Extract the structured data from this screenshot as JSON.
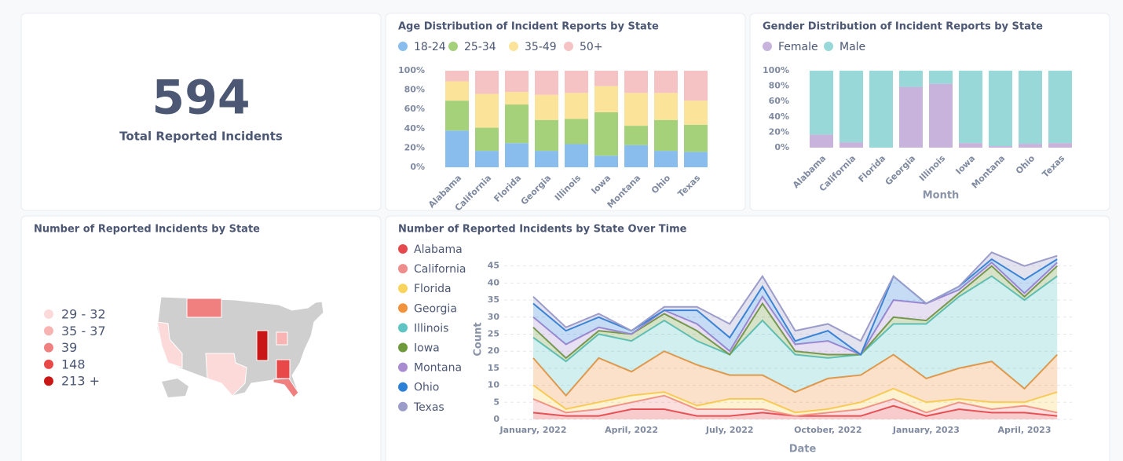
{
  "kpi": {
    "value": 594,
    "label": "Total Reported Incidents"
  },
  "chart_data": [
    {
      "type": "bar",
      "stacked": true,
      "title": "Age Distribution of Incident Reports by State",
      "categories": [
        "Alabama",
        "California",
        "Florida",
        "Georgia",
        "Illinois",
        "Iowa",
        "Montana",
        "Ohio",
        "Texas"
      ],
      "series": [
        {
          "name": "18-24",
          "color": "#88bdee",
          "values": [
            38,
            17,
            25,
            17,
            24,
            12,
            23,
            17,
            16
          ]
        },
        {
          "name": "25-34",
          "color": "#a5d17b",
          "values": [
            31,
            24,
            40,
            32,
            26,
            45,
            20,
            32,
            28
          ]
        },
        {
          "name": "35-49",
          "color": "#fbe39a",
          "values": [
            20,
            35,
            13,
            26,
            27,
            27,
            34,
            28,
            25
          ]
        },
        {
          "name": "50+",
          "color": "#f6c3c4",
          "values": [
            11,
            24,
            22,
            25,
            23,
            16,
            23,
            23,
            31
          ]
        }
      ],
      "ylim": [
        0,
        100
      ],
      "yticks": [
        {
          "value": 0,
          "label": "0%"
        },
        {
          "value": 20,
          "label": "20%"
        },
        {
          "value": 40,
          "label": "40%"
        },
        {
          "value": 60,
          "label": "60%"
        },
        {
          "value": 80,
          "label": "80%"
        },
        {
          "value": 100,
          "label": "100%"
        }
      ]
    },
    {
      "type": "bar",
      "stacked": true,
      "title": "Gender Distribution of Incident Reports by State",
      "categories": [
        "Alabama",
        "California",
        "Florida",
        "Georgia",
        "Illinois",
        "Iowa",
        "Montana",
        "Ohio",
        "Texas"
      ],
      "xlabel": "Month",
      "series": [
        {
          "name": "Female",
          "color": "#c8b3dd",
          "values": [
            17,
            7,
            0,
            79,
            83,
            6,
            2,
            5,
            6
          ]
        },
        {
          "name": "Male",
          "color": "#98d8d8",
          "values": [
            83,
            93,
            100,
            21,
            17,
            94,
            98,
            95,
            94
          ]
        }
      ],
      "ylim": [
        0,
        100
      ],
      "yticks": [
        {
          "value": 0,
          "label": "0%"
        },
        {
          "value": 20,
          "label": "20%"
        },
        {
          "value": 40,
          "label": "40%"
        },
        {
          "value": 60,
          "label": "60%"
        },
        {
          "value": 80,
          "label": "80%"
        },
        {
          "value": 100,
          "label": "100%"
        }
      ]
    },
    {
      "type": "area",
      "stacked": true,
      "title": "Number of Reported Incidents by State Over Time",
      "categories": [
        "January, 2022",
        null,
        null,
        "April, 2022",
        null,
        null,
        "July, 2022",
        null,
        null,
        "October, 2022",
        null,
        null,
        "January, 2023",
        null,
        null,
        "April, 2023",
        null
      ],
      "xlabel": "Date",
      "ylabel": "Count",
      "series": [
        {
          "name": "Alabama",
          "color": "#e5484d",
          "values": [
            2,
            1,
            1,
            3,
            3,
            1,
            1,
            2,
            1,
            1,
            1,
            4,
            1,
            3,
            2,
            2,
            1
          ]
        },
        {
          "name": "California",
          "color": "#ef8c8c",
          "values": [
            4,
            1,
            2,
            2,
            4,
            2,
            2,
            1,
            0,
            1,
            2,
            2,
            1,
            2,
            1,
            2,
            1
          ]
        },
        {
          "name": "Florida",
          "color": "#f9d45c",
          "values": [
            4,
            1,
            2,
            2,
            1,
            1,
            3,
            3,
            1,
            1,
            2,
            3,
            3,
            1,
            2,
            1,
            6
          ]
        },
        {
          "name": "Georgia",
          "color": "#f2923c",
          "values": [
            8,
            4,
            13,
            7,
            12,
            12,
            7,
            7,
            6,
            9,
            8,
            10,
            7,
            9,
            12,
            4,
            11
          ]
        },
        {
          "name": "Illinois",
          "color": "#5ec4c4",
          "values": [
            6,
            10,
            7,
            9,
            9,
            7,
            6,
            16,
            11,
            6,
            6,
            9,
            16,
            21,
            25,
            26,
            23
          ]
        },
        {
          "name": "Iowa",
          "color": "#6e9a3c",
          "values": [
            3,
            1,
            1,
            2,
            2,
            3,
            0,
            5,
            1,
            1,
            0,
            2,
            1,
            1,
            3,
            1,
            3
          ]
        },
        {
          "name": "Montana",
          "color": "#a98bd0",
          "values": [
            3,
            4,
            1,
            0,
            1,
            2,
            1,
            2,
            2,
            4,
            0,
            5,
            5,
            1,
            1,
            1,
            1
          ]
        },
        {
          "name": "Ohio",
          "color": "#2e80d6",
          "values": [
            4,
            4,
            3,
            1,
            0,
            4,
            4,
            3,
            1,
            3,
            0,
            7,
            0,
            1,
            1,
            4,
            1
          ]
        },
        {
          "name": "Texas",
          "color": "#9b9cc9",
          "values": [
            2,
            1,
            1,
            0,
            1,
            1,
            4,
            3,
            3,
            2,
            4,
            0,
            0,
            0,
            2,
            4,
            1
          ]
        }
      ],
      "ylim": [
        0,
        47
      ],
      "yticks": [
        0,
        5,
        10,
        15,
        20,
        25,
        30,
        35,
        40,
        45
      ],
      "grid": true
    }
  ],
  "map": {
    "title": "Number of Reported Incidents by State",
    "legend": [
      {
        "label": "29 - 32",
        "color": "#fcdada"
      },
      {
        "label": "35 - 37",
        "color": "#f8b3b3"
      },
      {
        "label": "39",
        "color": "#f07f7f"
      },
      {
        "label": "148",
        "color": "#e84848"
      },
      {
        "label": "213 +",
        "color": "#c91616"
      }
    ]
  }
}
